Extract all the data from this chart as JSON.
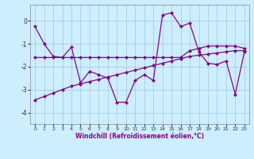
{
  "xlabel": "Windchill (Refroidissement éolien,°C)",
  "background_color": "#cceeff",
  "grid_color": "#aaccdd",
  "line_color": "#880088",
  "x_data": [
    0,
    1,
    2,
    3,
    4,
    5,
    6,
    7,
    8,
    9,
    10,
    11,
    12,
    13,
    14,
    15,
    16,
    17,
    18,
    19,
    20,
    21,
    22,
    23
  ],
  "y_series1": [
    -0.25,
    -1.0,
    -1.55,
    -1.6,
    -1.15,
    -2.7,
    -2.2,
    -2.35,
    -2.5,
    -3.55,
    -3.55,
    -2.6,
    -2.35,
    -2.6,
    0.25,
    0.35,
    -0.25,
    -0.1,
    -1.35,
    -1.85,
    -1.9,
    -1.75,
    -3.2,
    -1.35
  ],
  "y_series2": [
    -1.6,
    -1.6,
    -1.6,
    -1.6,
    -1.6,
    -1.6,
    -1.6,
    -1.6,
    -1.6,
    -1.6,
    -1.6,
    -1.6,
    -1.6,
    -1.6,
    -1.6,
    -1.6,
    -1.6,
    -1.3,
    -1.2,
    -1.1,
    -1.1,
    -1.1,
    -1.1,
    -1.2
  ],
  "y_trend": [
    -3.45,
    -3.3,
    -3.15,
    -3.0,
    -2.85,
    -2.75,
    -2.65,
    -2.55,
    -2.45,
    -2.35,
    -2.25,
    -2.15,
    -2.05,
    -1.95,
    -1.85,
    -1.75,
    -1.65,
    -1.55,
    -1.5,
    -1.45,
    -1.4,
    -1.35,
    -1.3,
    -1.3
  ],
  "xlim": [
    -0.5,
    23.5
  ],
  "ylim": [
    -4.5,
    0.7
  ],
  "yticks": [
    0,
    -1,
    -2,
    -3,
    -4
  ],
  "xticks": [
    0,
    1,
    2,
    3,
    4,
    5,
    6,
    7,
    8,
    9,
    10,
    11,
    12,
    13,
    14,
    15,
    16,
    17,
    18,
    19,
    20,
    21,
    22,
    23
  ],
  "markersize": 2.5,
  "linewidth": 0.9
}
